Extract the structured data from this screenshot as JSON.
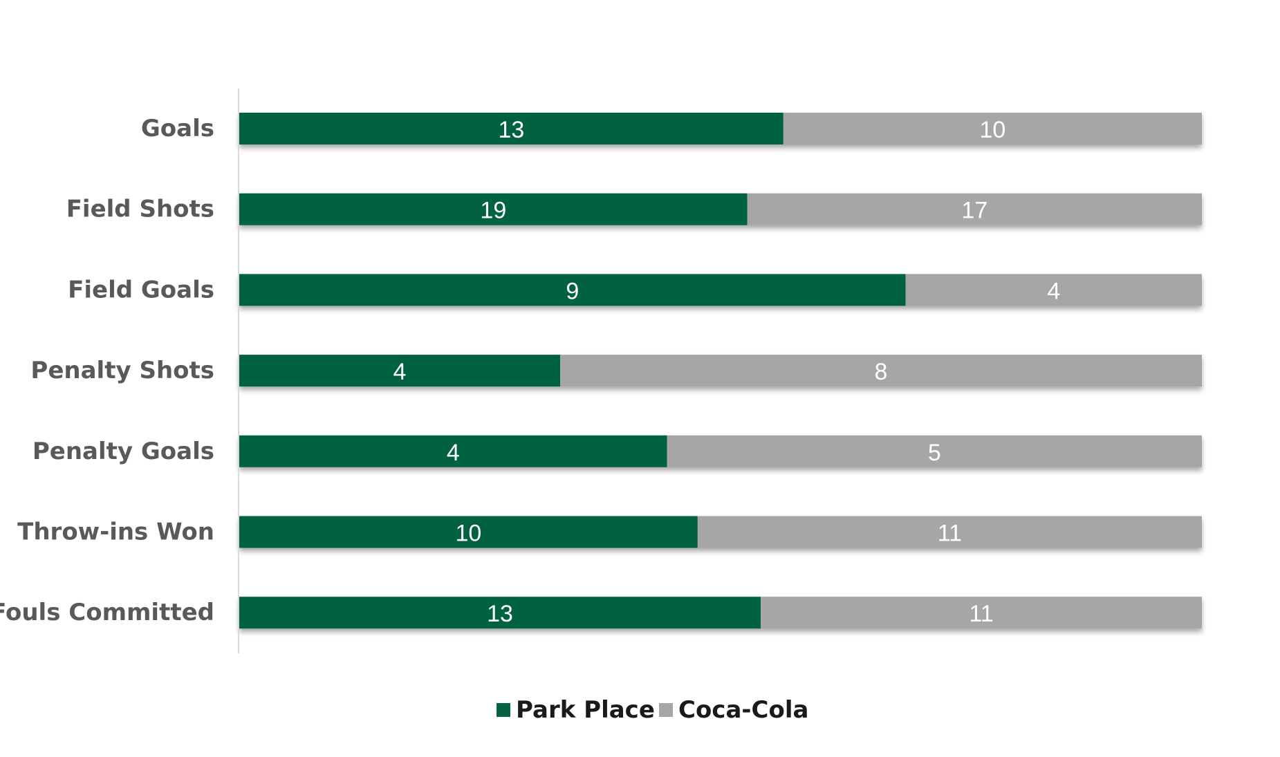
{
  "chart_data": {
    "type": "bar",
    "orientation": "horizontal",
    "stacking": "percent",
    "categories": [
      "Goals",
      "Field Shots",
      "Field Goals",
      "Penalty Shots",
      "Penalty Goals",
      "Throw-ins Won",
      "Fouls Committed"
    ],
    "series": [
      {
        "name": "Park Place",
        "values": [
          13,
          19,
          9,
          4,
          4,
          10,
          13
        ],
        "color": "#066241"
      },
      {
        "name": "Coca-Cola",
        "values": [
          10,
          17,
          4,
          8,
          5,
          11,
          11
        ],
        "color": "#a6a6a6"
      }
    ],
    "title": "",
    "xlabel": "",
    "ylabel": "",
    "data_labels": true,
    "grid": false,
    "legend_position": "bottom"
  }
}
